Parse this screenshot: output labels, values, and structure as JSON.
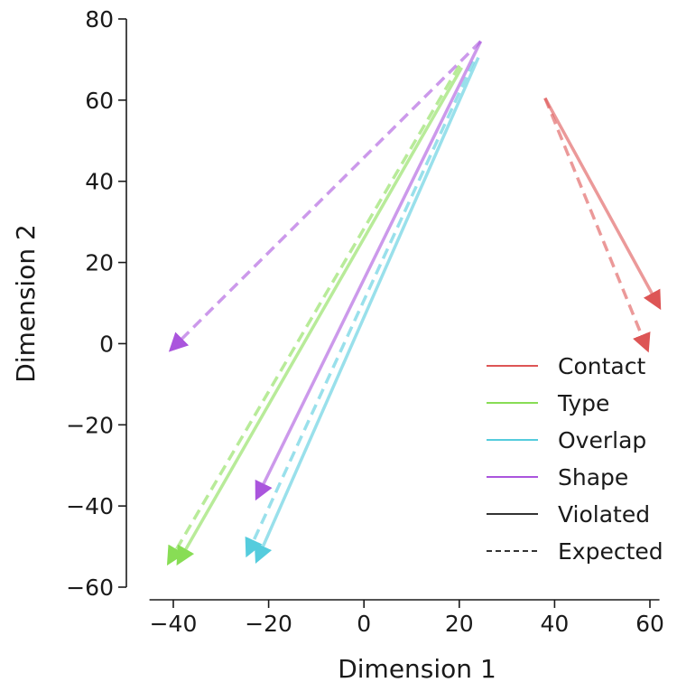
{
  "chart_data": {
    "type": "line",
    "title": "",
    "xlabel": "Dimension 1",
    "ylabel": "Dimension 2",
    "xlim": [
      -45,
      62
    ],
    "ylim": [
      -60,
      80
    ],
    "xticks": [
      -40,
      -20,
      0,
      20,
      40,
      60
    ],
    "yticks": [
      -60,
      -40,
      -20,
      0,
      20,
      40,
      60,
      80
    ],
    "grid": false,
    "legend_position": "lower-right",
    "categories": [
      {
        "name": "Contact",
        "color": "#dd5555"
      },
      {
        "name": "Type",
        "color": "#88dd55"
      },
      {
        "name": "Overlap",
        "color": "#55ccdd"
      },
      {
        "name": "Shape",
        "color": "#aa55dd"
      }
    ],
    "styles": [
      {
        "name": "Violated",
        "dash": "solid"
      },
      {
        "name": "Expected",
        "dash": "dashed"
      }
    ],
    "series": [
      {
        "category": "Contact",
        "style": "Violated",
        "x": [
          38,
          62
        ],
        "y": [
          60.5,
          9
        ]
      },
      {
        "category": "Contact",
        "style": "Expected",
        "x": [
          38,
          59.5
        ],
        "y": [
          60.5,
          -1.5
        ]
      },
      {
        "category": "Type",
        "style": "Violated",
        "x": [
          20.5,
          -39
        ],
        "y": [
          68,
          -54
        ]
      },
      {
        "category": "Type",
        "style": "Expected",
        "x": [
          20,
          -41
        ],
        "y": [
          68.5,
          -54
        ]
      },
      {
        "category": "Overlap",
        "style": "Violated",
        "x": [
          24,
          -22.5
        ],
        "y": [
          70.5,
          -53.5
        ]
      },
      {
        "category": "Overlap",
        "style": "Expected",
        "x": [
          23,
          -24.5
        ],
        "y": [
          69.5,
          -52
        ]
      },
      {
        "category": "Shape",
        "style": "Violated",
        "x": [
          24.5,
          -22.5
        ],
        "y": [
          74.5,
          -38
        ]
      },
      {
        "category": "Shape",
        "style": "Expected",
        "x": [
          24.5,
          -40.5
        ],
        "y": [
          74.5,
          -1.5
        ]
      }
    ]
  }
}
